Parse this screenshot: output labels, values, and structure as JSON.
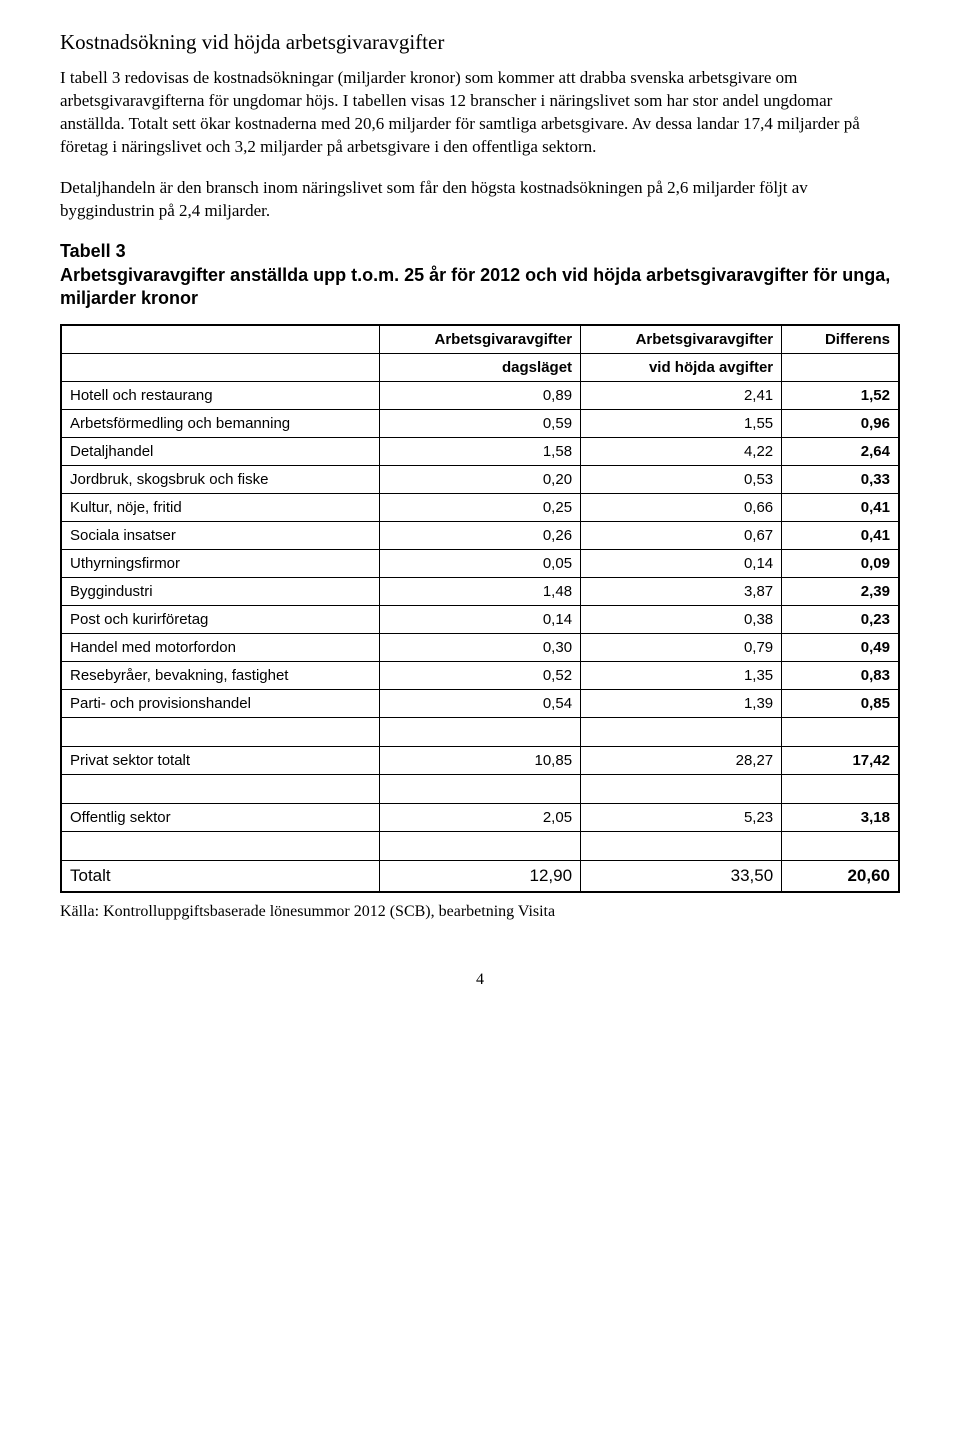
{
  "heading": "Kostnadsökning vid höjda arbetsgivaravgifter",
  "paragraphs": {
    "p1": "I tabell 3 redovisas de kostnadsökningar (miljarder kronor) som kommer att drabba svenska arbetsgivare om arbetsgivaravgifterna för ungdomar höjs. I tabellen visas 12 branscher i näringslivet som har stor andel ungdomar anställda. Totalt sett ökar kostnaderna med 20,6 miljarder för samtliga arbetsgivare. Av dessa landar 17,4 miljarder på företag i näringslivet och 3,2 miljarder på arbetsgivare i den offentliga sektorn.",
    "p2": "Detaljhandeln är den bransch inom näringslivet som får den högsta kostnadsökningen på 2,6 miljarder följt av byggindustrin på 2,4 miljarder."
  },
  "table_title": "Tabell 3",
  "table_subtitle": "Arbetsgivaravgifter anställda upp t.o.m. 25 år för 2012 och vid höjda arbetsgivaravgifter för unga, miljarder kronor",
  "columns": {
    "c1": "",
    "c2a": "Arbetsgivaravgifter",
    "c2b": "dagsläget",
    "c3a": "Arbetsgivaravgifter",
    "c3b": "vid höjda avgifter",
    "c4": "Differens"
  },
  "rows": [
    {
      "label": "Hotell och restaurang",
      "a": "0,89",
      "b": "2,41",
      "d": "1,52"
    },
    {
      "label": "Arbetsförmedling och bemanning",
      "a": "0,59",
      "b": "1,55",
      "d": "0,96"
    },
    {
      "label": "Detaljhandel",
      "a": "1,58",
      "b": "4,22",
      "d": "2,64"
    },
    {
      "label": "Jordbruk, skogsbruk och fiske",
      "a": "0,20",
      "b": "0,53",
      "d": "0,33"
    },
    {
      "label": "Kultur, nöje, fritid",
      "a": "0,25",
      "b": "0,66",
      "d": "0,41"
    },
    {
      "label": "Sociala insatser",
      "a": "0,26",
      "b": "0,67",
      "d": "0,41"
    },
    {
      "label": "Uthyrningsfirmor",
      "a": "0,05",
      "b": "0,14",
      "d": "0,09"
    },
    {
      "label": "Byggindustri",
      "a": "1,48",
      "b": "3,87",
      "d": "2,39"
    },
    {
      "label": "Post och kurirföretag",
      "a": "0,14",
      "b": "0,38",
      "d": "0,23"
    },
    {
      "label": "Handel med motorfordon",
      "a": "0,30",
      "b": "0,79",
      "d": "0,49"
    },
    {
      "label": "Resebyråer, bevakning, fastighet",
      "a": "0,52",
      "b": "1,35",
      "d": "0,83"
    },
    {
      "label": "Parti- och provisionshandel",
      "a": "0,54",
      "b": "1,39",
      "d": "0,85"
    }
  ],
  "subtotals": {
    "privat": {
      "label": "Privat sektor totalt",
      "a": "10,85",
      "b": "28,27",
      "d": "17,42"
    },
    "offentlig": {
      "label": "Offentlig sektor",
      "a": "2,05",
      "b": "5,23",
      "d": "3,18"
    }
  },
  "total": {
    "label": "Totalt",
    "a": "12,90",
    "b": "33,50",
    "d": "20,60"
  },
  "source": "Källa: Kontrolluppgiftsbaserade lönesummor 2012 (SCB), bearbetning Visita",
  "page_number": "4"
}
